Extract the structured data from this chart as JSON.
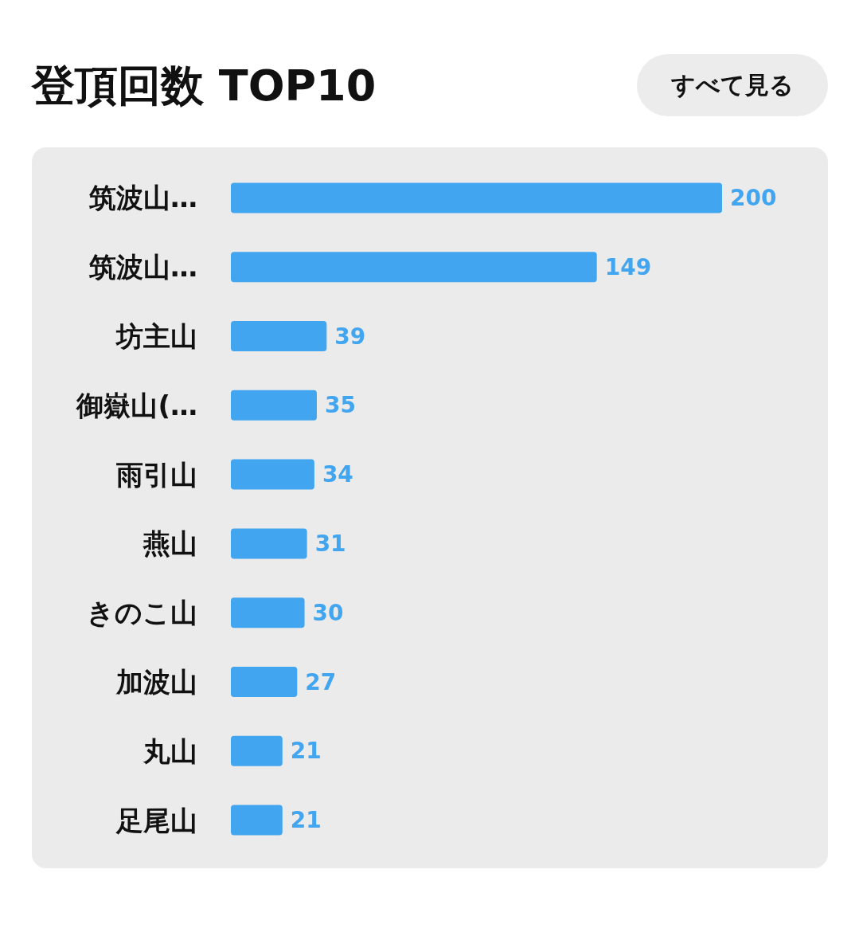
{
  "chart_data": {
    "type": "bar",
    "orientation": "horizontal",
    "title": "登頂回数 TOP10",
    "annotations": [
      "すべて見る"
    ],
    "categories": [
      "筑波山…",
      "筑波山…",
      "坊主山",
      "御嶽山(…",
      "雨引山",
      "燕山",
      "きのこ山",
      "加波山",
      "丸山",
      "足尾山"
    ],
    "values": [
      200,
      149,
      39,
      35,
      34,
      31,
      30,
      27,
      21,
      21
    ],
    "color": "#42a5f0",
    "data_labels": true
  }
}
